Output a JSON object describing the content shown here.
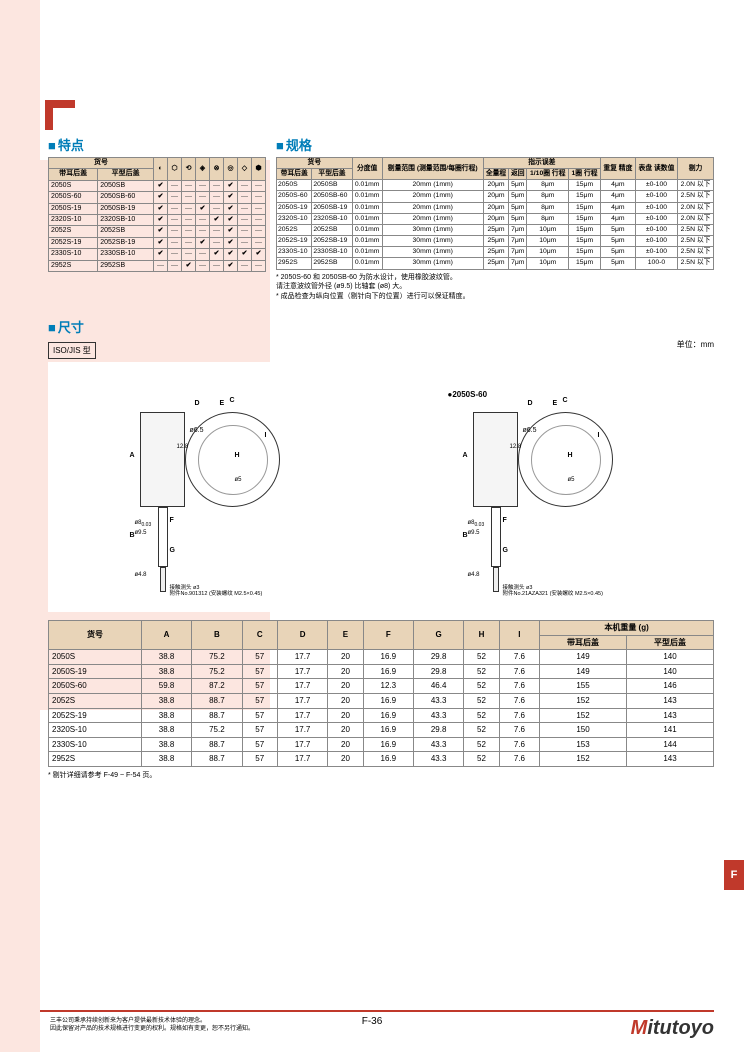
{
  "page": {
    "features_title": "特点",
    "specs_title": "规格",
    "dims_title": "尺寸",
    "iso_label": "ISO/JIS\n型",
    "unit": "单位：mm",
    "page_num": "F-36",
    "side_tab": "F",
    "footer_line1": "三丰公司秉承持续创新来为客户提供最新技术体验的理念。",
    "footer_line2": "因此保留对产品的技术规格进行变更的权利。规格如有变更，恕不另行通知。",
    "logo_text": "itutoyo"
  },
  "features_table": {
    "headers": {
      "code": "货号",
      "col1": "带耳后盖",
      "col2": "平型后盖"
    },
    "icon_count": 8,
    "rows": [
      {
        "c1": "2050S",
        "c2": "2050SB",
        "f": [
          "✔",
          "—",
          "—",
          "—",
          "—",
          "✔",
          "—",
          "—"
        ]
      },
      {
        "c1": "2050S-60",
        "c2": "2050SB-60",
        "f": [
          "✔",
          "—",
          "—",
          "—",
          "—",
          "✔",
          "—",
          "—"
        ]
      },
      {
        "c1": "2050S-19",
        "c2": "2050SB-19",
        "f": [
          "✔",
          "—",
          "—",
          "✔",
          "—",
          "✔",
          "—",
          "—"
        ]
      },
      {
        "c1": "2320S-10",
        "c2": "2320SB-10",
        "f": [
          "✔",
          "—",
          "—",
          "—",
          "✔",
          "✔",
          "—",
          "—"
        ]
      },
      {
        "c1": "2052S",
        "c2": "2052SB",
        "f": [
          "✔",
          "—",
          "—",
          "—",
          "—",
          "✔",
          "—",
          "—"
        ]
      },
      {
        "c1": "2052S-19",
        "c2": "2052SB-19",
        "f": [
          "✔",
          "—",
          "—",
          "✔",
          "—",
          "✔",
          "—",
          "—"
        ]
      },
      {
        "c1": "2330S-10",
        "c2": "2330SB-10",
        "f": [
          "✔",
          "—",
          "—",
          "—",
          "✔",
          "✔",
          "✔",
          "✔"
        ]
      },
      {
        "c1": "2952S",
        "c2": "2952SB",
        "f": [
          "—",
          "—",
          "✔",
          "—",
          "—",
          "✔",
          "—",
          "—"
        ]
      }
    ]
  },
  "specs_table": {
    "headers": {
      "code": "货号",
      "col1": "带耳后盖",
      "col2": "平型后盖",
      "grad": "分度值",
      "range": "剔量范围\n(测量范围/每圈行程)",
      "indic": "指示误差",
      "full": "全量程",
      "ret": "返回",
      "tenth": "1/10圈\n行程",
      "one": "1圈\n行程",
      "rep": "重复\n精度",
      "read": "表盘\n读数值",
      "force": "剔力"
    },
    "rows": [
      {
        "c1": "2050S",
        "c2": "2050SB",
        "g": "0.01mm",
        "r": "20mm (1mm)",
        "f": "20μm",
        "ret": "5μm",
        "t": "8μm",
        "o": "15μm",
        "rep": "4μm",
        "rd": "±0-100",
        "fc": "2.0N 以下"
      },
      {
        "c1": "2050S-60",
        "c2": "2050SB-60",
        "g": "0.01mm",
        "r": "20mm (1mm)",
        "f": "20μm",
        "ret": "5μm",
        "t": "8μm",
        "o": "15μm",
        "rep": "4μm",
        "rd": "±0-100",
        "fc": "2.5N 以下"
      },
      {
        "c1": "2050S-19",
        "c2": "2050SB-19",
        "g": "0.01mm",
        "r": "20mm (1mm)",
        "f": "20μm",
        "ret": "5μm",
        "t": "8μm",
        "o": "15μm",
        "rep": "4μm",
        "rd": "±0-100",
        "fc": "2.0N 以下"
      },
      {
        "c1": "2320S-10",
        "c2": "2320SB-10",
        "g": "0.01mm",
        "r": "20mm (1mm)",
        "f": "20μm",
        "ret": "5μm",
        "t": "8μm",
        "o": "15μm",
        "rep": "4μm",
        "rd": "±0-100",
        "fc": "2.0N 以下"
      },
      {
        "c1": "2052S",
        "c2": "2052SB",
        "g": "0.01mm",
        "r": "30mm (1mm)",
        "f": "25μm",
        "ret": "7μm",
        "t": "10μm",
        "o": "15μm",
        "rep": "5μm",
        "rd": "±0-100",
        "fc": "2.5N 以下"
      },
      {
        "c1": "2052S-19",
        "c2": "2052SB-19",
        "g": "0.01mm",
        "r": "30mm (1mm)",
        "f": "25μm",
        "ret": "7μm",
        "t": "10μm",
        "o": "15μm",
        "rep": "5μm",
        "rd": "±0-100",
        "fc": "2.5N 以下"
      },
      {
        "c1": "2330S-10",
        "c2": "2330SB-10",
        "g": "0.01mm",
        "r": "30mm (1mm)",
        "f": "25μm",
        "ret": "7μm",
        "t": "10μm",
        "o": "15μm",
        "rep": "5μm",
        "rd": "±0-100",
        "fc": "2.5N 以下"
      },
      {
        "c1": "2952S",
        "c2": "2952SB",
        "g": "0.01mm",
        "r": "30mm (1mm)",
        "f": "25μm",
        "ret": "7μm",
        "t": "10μm",
        "o": "15μm",
        "rep": "5μm",
        "rd": "100-0",
        "fc": "2.5N 以下"
      }
    ],
    "note1": "* 2050S-60 和 2050SB-60 为防水设计，使用橡胶波纹管。",
    "note2": "  请注意波纹管外径 (ø9.5) 比轴套 (ø8) 大。",
    "note3": "* 成品检查为纵向位置（剔针向下的位置）进行可以保证精度。"
  },
  "drawings": {
    "left_title": "",
    "right_title": "●2050S-60",
    "tip_label": "接触测头 ø3",
    "left_part": "附件No.901312\n(安装螺纹 M2.5×0.45)",
    "right_part": "附件No.21AZA321\n(安装螺纹 M2.5×0.45)"
  },
  "dims_table": {
    "headers": {
      "code": "货号",
      "A": "A",
      "B": "B",
      "C": "C",
      "D": "D",
      "E": "E",
      "F": "F",
      "G": "G",
      "H": "H",
      "I": "I",
      "wt": "本机重量 (g)",
      "wt1": "带耳后盖",
      "wt2": "平型后盖"
    },
    "rows": [
      {
        "c": "2050S",
        "A": "38.8",
        "B": "75.2",
        "C": "57",
        "D": "17.7",
        "E": "20",
        "F": "16.9",
        "G": "29.8",
        "H": "52",
        "I": "7.6",
        "w1": "149",
        "w2": "140"
      },
      {
        "c": "2050S-19",
        "A": "38.8",
        "B": "75.2",
        "C": "57",
        "D": "17.7",
        "E": "20",
        "F": "16.9",
        "G": "29.8",
        "H": "52",
        "I": "7.6",
        "w1": "149",
        "w2": "140"
      },
      {
        "c": "2050S-60",
        "A": "59.8",
        "B": "87.2",
        "C": "57",
        "D": "17.7",
        "E": "20",
        "F": "12.3",
        "G": "46.4",
        "H": "52",
        "I": "7.6",
        "w1": "155",
        "w2": "146"
      },
      {
        "c": "2052S",
        "A": "38.8",
        "B": "88.7",
        "C": "57",
        "D": "17.7",
        "E": "20",
        "F": "16.9",
        "G": "43.3",
        "H": "52",
        "I": "7.6",
        "w1": "152",
        "w2": "143"
      },
      {
        "c": "2052S-19",
        "A": "38.8",
        "B": "88.7",
        "C": "57",
        "D": "17.7",
        "E": "20",
        "F": "16.9",
        "G": "43.3",
        "H": "52",
        "I": "7.6",
        "w1": "152",
        "w2": "143"
      },
      {
        "c": "2320S-10",
        "A": "38.8",
        "B": "75.2",
        "C": "57",
        "D": "17.7",
        "E": "20",
        "F": "16.9",
        "G": "29.8",
        "H": "52",
        "I": "7.6",
        "w1": "150",
        "w2": "141"
      },
      {
        "c": "2330S-10",
        "A": "38.8",
        "B": "88.7",
        "C": "57",
        "D": "17.7",
        "E": "20",
        "F": "16.9",
        "G": "43.3",
        "H": "52",
        "I": "7.6",
        "w1": "153",
        "w2": "144"
      },
      {
        "c": "2952S",
        "A": "38.8",
        "B": "88.7",
        "C": "57",
        "D": "17.7",
        "E": "20",
        "F": "16.9",
        "G": "43.3",
        "H": "52",
        "I": "7.6",
        "w1": "152",
        "w2": "143"
      }
    ],
    "note": "* 剔针详细请参考 F-49 ~ F-54 页。"
  }
}
